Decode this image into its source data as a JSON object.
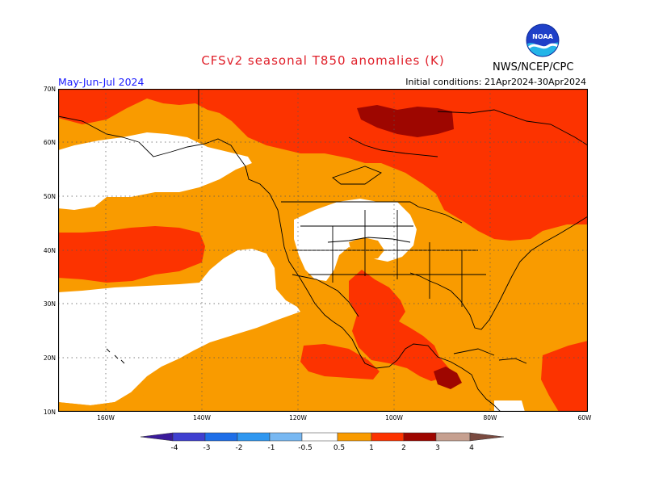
{
  "header": {
    "title": "CFSv2 seasonal T850 anomalies (K)",
    "period": "May-Jun-Jul 2024",
    "initial_conditions": "Initial conditions: 21Apr2024-30Apr2024",
    "agency": "NWS/NCEP/CPC",
    "logo_text": "NOAA"
  },
  "map": {
    "lat_labels": [
      "70N",
      "60N",
      "50N",
      "40N",
      "30N",
      "20N",
      "10N"
    ],
    "lon_labels": [
      "160W",
      "140W",
      "120W",
      "100W",
      "80W",
      "60W"
    ]
  },
  "legend": {
    "labels": [
      "-4",
      "-3",
      "-2",
      "-1",
      "-0.5",
      "0.5",
      "1",
      "2",
      "3",
      "4"
    ],
    "colors": {
      "lt_m4": "#3a1a9a",
      "m4_m3": "#3f3fd0",
      "m3_m2": "#1e6ee8",
      "m2_m1": "#2f97f0",
      "m1_m05": "#78b8f2",
      "neutral": "#ffffff",
      "p05_p1": "#f99b00",
      "p1_p2": "#fc3300",
      "p2_p3": "#9e0600",
      "p3_p4": "#c6a090",
      "gt_p4": "#7a4a40"
    }
  }
}
